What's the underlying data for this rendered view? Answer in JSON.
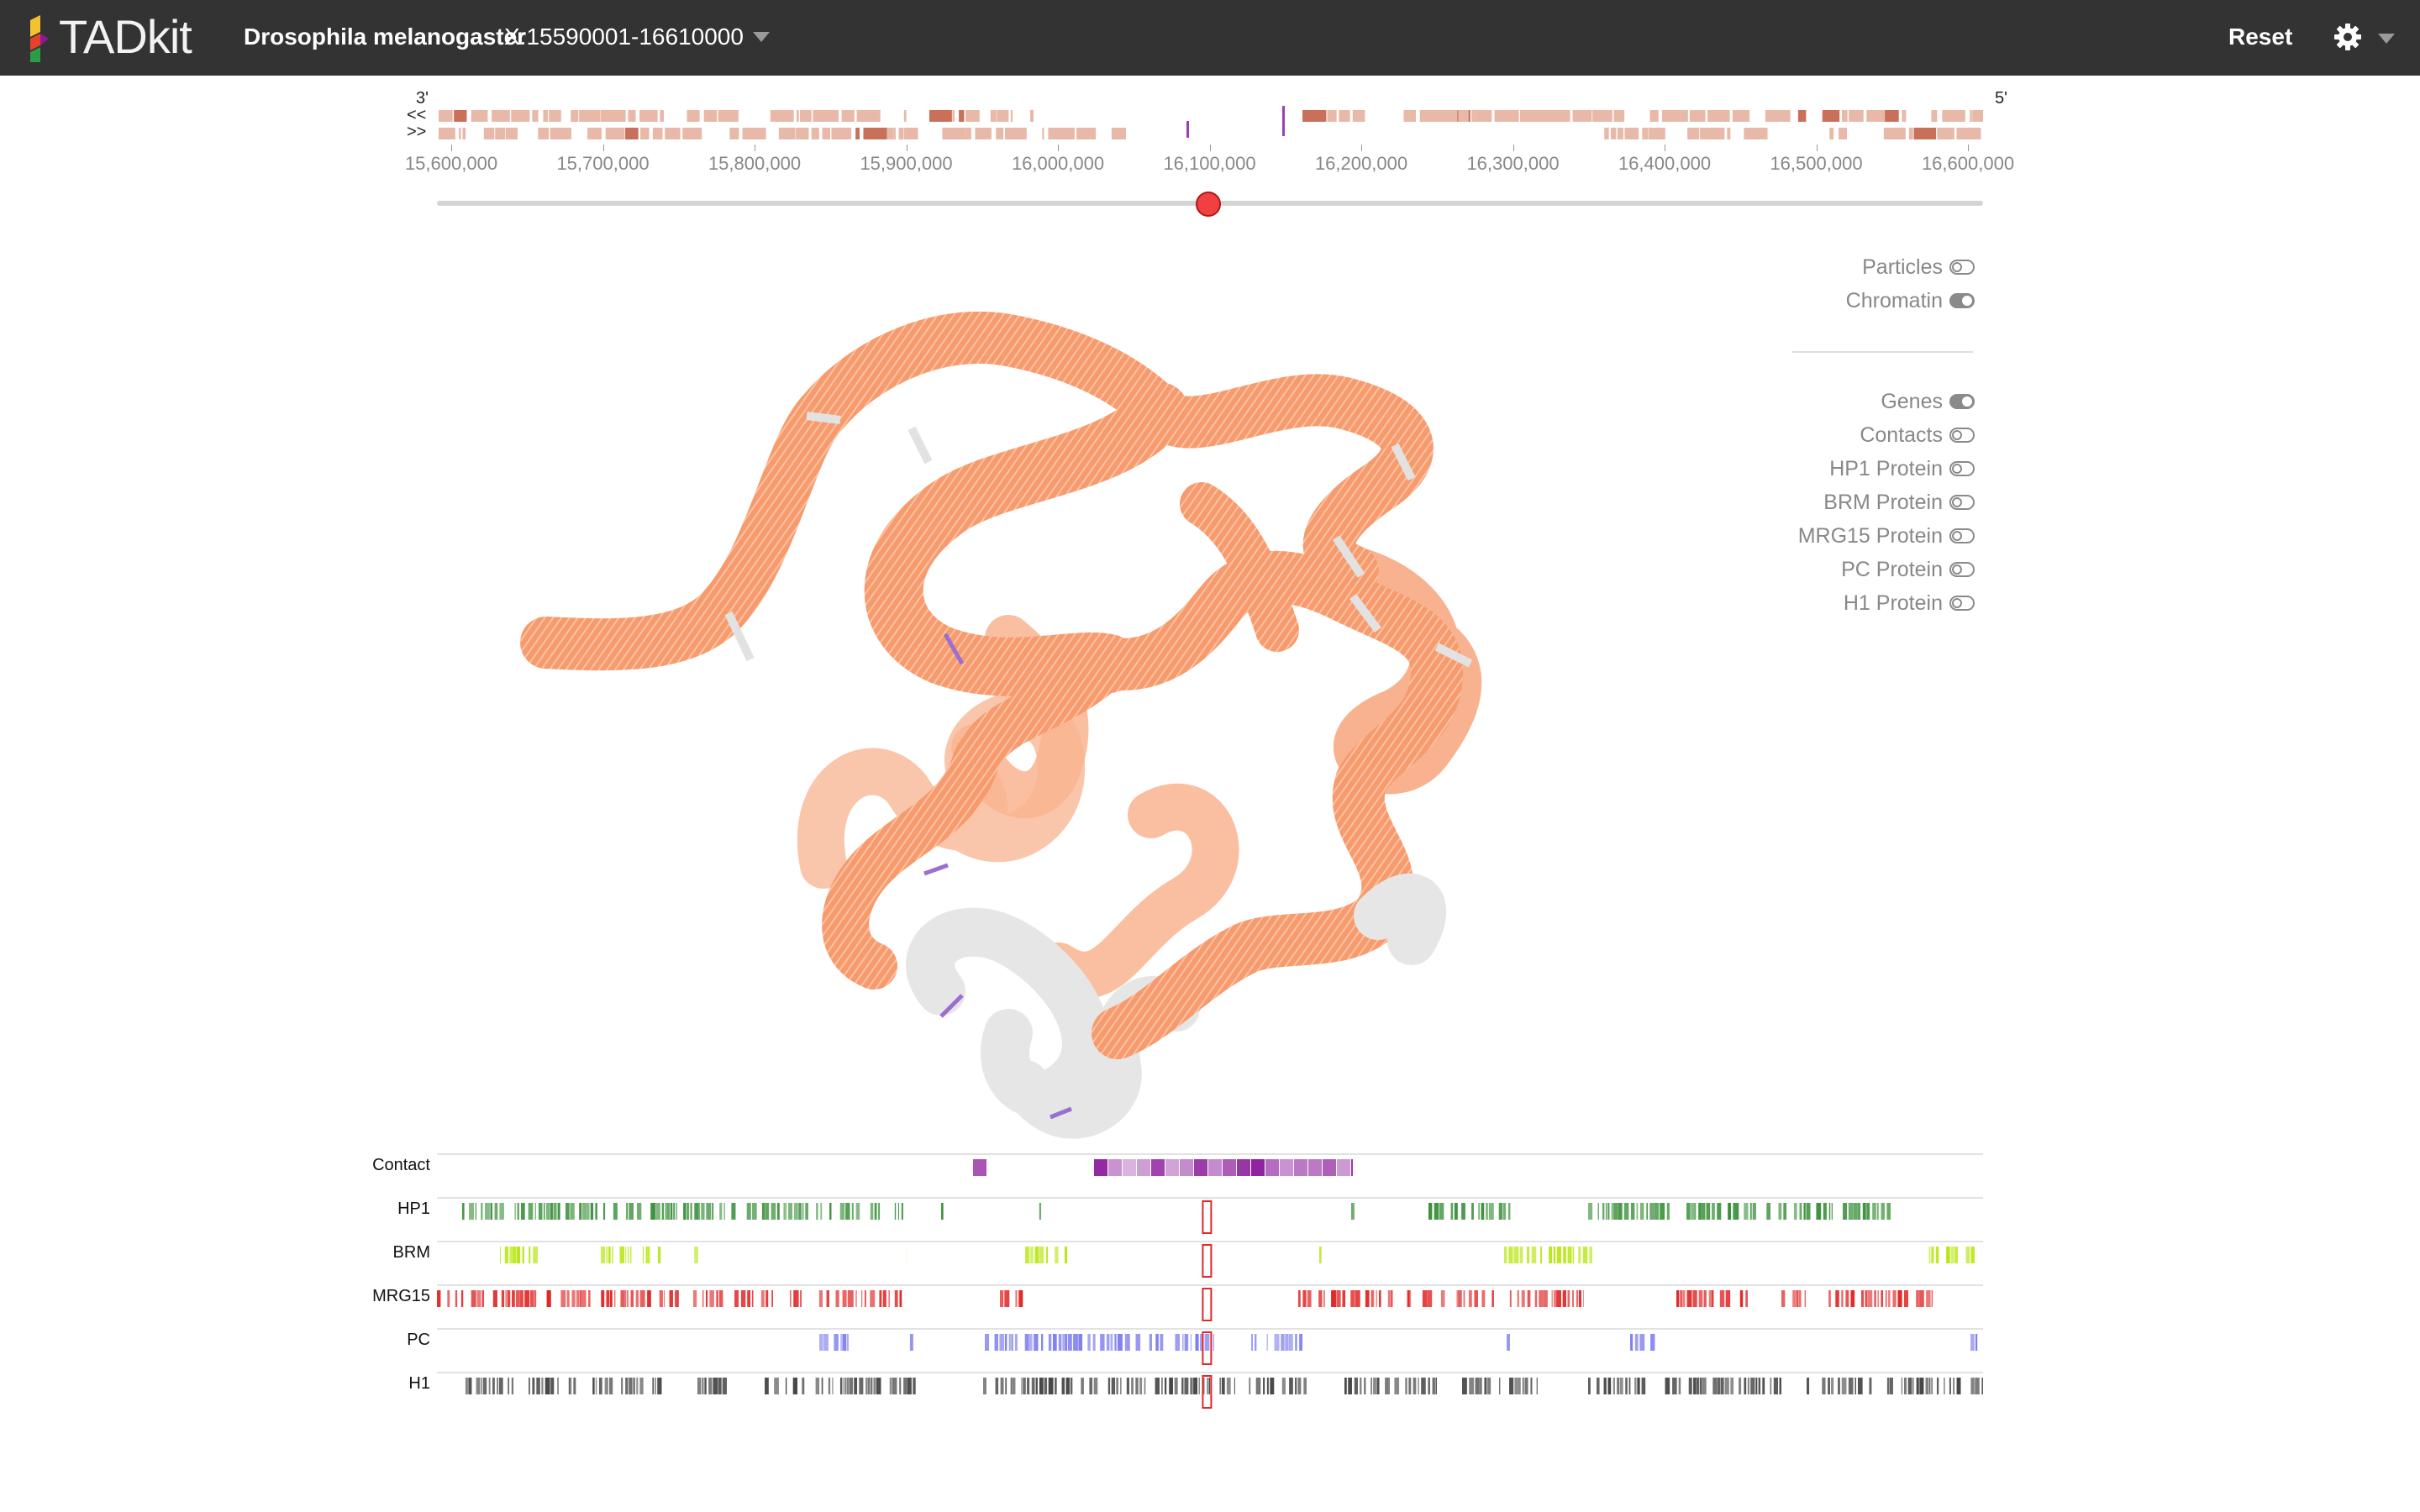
{
  "app": {
    "brand": "TADkit",
    "species": "Drosophila melanogaster",
    "region": "X:15590001-16610000",
    "reset_label": "Reset",
    "icons": [
      "tadkit-logo-icon",
      "chevron-down-icon",
      "gear-icon",
      "chevron-down-icon"
    ]
  },
  "browser": {
    "three_prime": "3'",
    "five_prime": "5'",
    "reverse_strand": "<<",
    "forward_strand": ">>",
    "ticks": [
      "15,600,000",
      "15,700,000",
      "15,800,000",
      "15,900,000",
      "16,000,000",
      "16,100,000",
      "16,200,000",
      "16,300,000",
      "16,400,000",
      "16,500,000",
      "16,600,000"
    ],
    "slider_position_bp": 16098000
  },
  "layers": [
    {
      "label": "Particles",
      "on": false
    },
    {
      "label": "Chromatin",
      "on": true
    },
    {
      "label": "Genes",
      "on": true
    },
    {
      "label": "Contacts",
      "on": false
    },
    {
      "label": "HP1 Protein",
      "on": false
    },
    {
      "label": "BRM Protein",
      "on": false
    },
    {
      "label": "MRG15 Protein",
      "on": false
    },
    {
      "label": "PC Protein",
      "on": false
    },
    {
      "label": "H1 Protein",
      "on": false
    }
  ],
  "tracks": [
    {
      "label": "Contact",
      "color": "#8b1a9b"
    },
    {
      "label": "HP1",
      "color": "#3a8f3a"
    },
    {
      "label": "BRM",
      "color": "#b8e610"
    },
    {
      "label": "MRG15",
      "color": "#e02828"
    },
    {
      "label": "PC",
      "color": "#7f7fef"
    },
    {
      "label": "H1",
      "color": "#444444"
    }
  ],
  "colors": {
    "navbar": "#333333",
    "chromatin": "#f79a6c",
    "chromatin_light": "#f9b896",
    "chromatin_grey": "#e4e4e4",
    "gene_marker": "#9b6fd0",
    "slider_handle": "#f04040",
    "gene_block": "#e8b9a8"
  }
}
